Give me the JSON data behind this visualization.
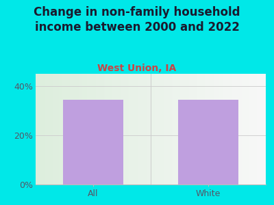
{
  "categories": [
    "All",
    "White"
  ],
  "values": [
    34.5,
    34.5
  ],
  "bar_color": "#bf9fdf",
  "title": "Change in non-family household\nincome between 2000 and 2022",
  "subtitle": "West Union, IA",
  "ylim": [
    0,
    45
  ],
  "yticks": [
    0,
    20,
    40
  ],
  "ytick_labels": [
    "0%",
    "20%",
    "40%"
  ],
  "background_color": "#00e8e8",
  "plot_bg_color_left": "#ddeedd",
  "plot_bg_color_right": "#f8f8f8",
  "title_color": "#1a1a2e",
  "subtitle_color": "#cc4444",
  "tick_label_color": "#555566",
  "title_fontsize": 12,
  "subtitle_fontsize": 10,
  "tick_fontsize": 9
}
